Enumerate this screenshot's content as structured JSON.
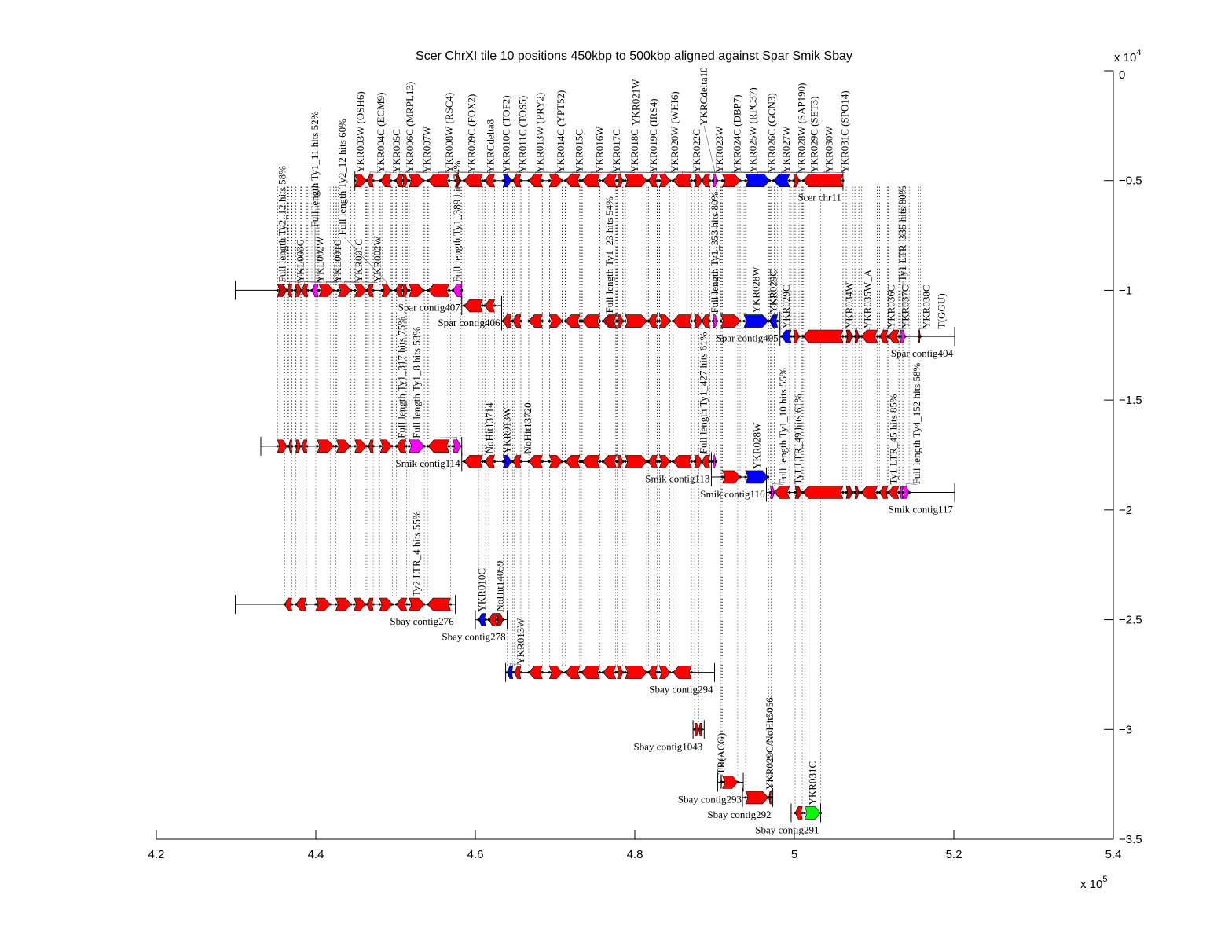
{
  "title": "Scer ChrXI tile 10 positions 450kbp to 500kbp aligned against Spar Smik Sbay",
  "x_axis": {
    "range_bp": [
      420000,
      540000
    ],
    "ticks": [
      420000,
      440000,
      460000,
      480000,
      500000,
      520000,
      540000
    ],
    "tick_labels": [
      "4.2",
      "4.4",
      "4.6",
      "4.8",
      "5",
      "5.2",
      "5.4"
    ],
    "multiplier_label": "x 10",
    "multiplier_exp": "5"
  },
  "y_axis": {
    "range": [
      -35000,
      0
    ],
    "ticks": [
      0,
      -5000,
      -10000,
      -15000,
      -20000,
      -25000,
      -30000,
      -35000
    ],
    "tick_labels": [
      "0",
      "−0.5",
      "−1",
      "−1.5",
      "−2",
      "−2.5",
      "−3",
      "−3.5"
    ],
    "multiplier_label": "x 10",
    "multiplier_exp": "4"
  },
  "colors": {
    "r": "#ff0000",
    "b": "#0000ff",
    "m": "#ff00ff",
    "d": "#c80000",
    "g": "#00ff00"
  },
  "tracks": [
    {
      "name": "Scer chr11",
      "y": -5000,
      "line": [
        444.9,
        506.1
      ],
      "genes": [
        [
          444.9,
          446.3,
          "W",
          "r",
          "YKR003W (OSH6)"
        ],
        [
          446.4,
          447.2,
          "C",
          "r",
          "YKR004C (ECM9)"
        ],
        [
          448.1,
          449.4,
          "C",
          "r",
          "YKR005C"
        ],
        [
          450.0,
          450.9,
          "C",
          "r",
          "YKR006C (MRPL13)"
        ],
        [
          450.9,
          451.5,
          "W",
          "r",
          "YKR007W"
        ],
        [
          451.7,
          453.5,
          "W",
          "r",
          "YKR008W (RSC4)"
        ],
        [
          454.1,
          456.7,
          "C",
          "r",
          "YKR009C (FOX2)"
        ],
        [
          457.5,
          458.1,
          "W",
          "d",
          "YKRCdelta8"
        ],
        [
          458.6,
          460.9,
          "C",
          "r",
          "YKR010C (TOF2)"
        ],
        [
          461.2,
          462.4,
          "C",
          "r",
          "YKR011C (TOS5)"
        ],
        [
          463.5,
          464.5,
          "W",
          "b",
          "YKR013W (PRY2)"
        ],
        [
          464.7,
          465.7,
          "C",
          "r",
          "YKR014C (YPT52)"
        ],
        [
          466.7,
          468.4,
          "C",
          "r",
          "YKR015C"
        ],
        [
          469.3,
          470.9,
          "W",
          "r",
          "YKR016W"
        ],
        [
          471.3,
          473.1,
          "C",
          "r",
          "YKR017C"
        ],
        [
          473.4,
          475.6,
          "C",
          "r",
          "YKR018C"
        ],
        [
          476.0,
          477.7,
          "C",
          "r",
          "YKR019C (IRS4)"
        ],
        [
          477.8,
          478.5,
          "W",
          "r",
          "YKR020W (WHI6)"
        ],
        [
          478.8,
          481.5,
          "W",
          "r",
          "YKR021W"
        ],
        [
          481.7,
          482.8,
          "C",
          "r",
          "YKR022C"
        ],
        [
          483.1,
          484.4,
          "W",
          "r",
          "YKR023W"
        ],
        [
          484.8,
          487.1,
          "C",
          "r",
          "YKR024C (DBP7)"
        ],
        [
          487.5,
          488.4,
          "W",
          "r",
          "YKR025W (RPC37)"
        ],
        [
          488.4,
          489.4,
          "C",
          "r",
          "YKR026C (GCN3)"
        ],
        [
          489.8,
          490.3,
          "W",
          "m",
          "YKRCdelta10"
        ],
        [
          491.0,
          493.2,
          "W",
          "r",
          "YKR027W"
        ],
        [
          493.9,
          496.9,
          "W",
          "b",
          "YKR028W (SAP190)"
        ],
        [
          497.4,
          499.4,
          "C",
          "b",
          "YKR029C (SET3)"
        ],
        [
          499.9,
          500.6,
          "W",
          "r",
          "YKR030W"
        ],
        [
          501.1,
          506.1,
          "C",
          "r",
          "YKR031C (SPO14)"
        ]
      ]
    },
    {
      "name": "Spar contig407",
      "y": -10000,
      "line": [
        429.9,
        458.3
      ],
      "genes": [
        [
          435.2,
          436.4,
          "W",
          "d",
          "Full length Ty2_12 hits 58%"
        ],
        [
          436.4,
          437.0,
          "C",
          "r",
          "YKL003C"
        ],
        [
          437.4,
          438.2,
          "W",
          "r",
          "YKL002W"
        ],
        [
          438.2,
          439.0,
          "C",
          "r",
          "YKL001C"
        ],
        [
          439.5,
          440.3,
          "C",
          "m",
          "Full length Ty1_11 hits 52%"
        ],
        [
          440.4,
          442.2,
          "W",
          "r",
          "YKR001C"
        ],
        [
          442.8,
          444.4,
          "W",
          "r",
          "YKR002W"
        ],
        [
          444.9,
          446.3,
          "W",
          "r",
          ""
        ],
        [
          446.4,
          447.2,
          "C",
          "r",
          ""
        ],
        [
          448.3,
          449.4,
          "W",
          "r",
          "Full length Ty2_12 hits 60%"
        ],
        [
          450.0,
          450.9,
          "C",
          "r",
          ""
        ],
        [
          450.9,
          451.5,
          "W",
          "r",
          ""
        ],
        [
          451.7,
          453.5,
          "W",
          "r",
          ""
        ],
        [
          454.1,
          456.7,
          "C",
          "r",
          ""
        ],
        [
          457.2,
          458.3,
          "C",
          "m",
          "Full length Ty1_389 hits 74%"
        ]
      ]
    },
    {
      "name": "Spar contig406",
      "y": -10700,
      "line": [
        458.3,
        463.3
      ],
      "genes": [
        [
          458.6,
          460.9,
          "C",
          "r",
          ""
        ],
        [
          461.2,
          462.4,
          "C",
          "r",
          ""
        ]
      ]
    },
    {
      "name": "Spar contig405",
      "y": -11400,
      "line": [
        463.3,
        498.2
      ],
      "genes": [
        [
          463.5,
          464.5,
          "C",
          "r",
          ""
        ],
        [
          464.7,
          465.7,
          "C",
          "r",
          ""
        ],
        [
          466.7,
          468.4,
          "C",
          "r",
          ""
        ],
        [
          469.3,
          470.9,
          "W",
          "r",
          ""
        ],
        [
          471.3,
          473.1,
          "C",
          "r",
          ""
        ],
        [
          473.4,
          475.6,
          "C",
          "r",
          ""
        ],
        [
          476.0,
          477.7,
          "C",
          "d",
          "Full length Ty1_23 hits 54%"
        ],
        [
          477.8,
          478.5,
          "W",
          "r",
          ""
        ],
        [
          478.8,
          481.5,
          "W",
          "r",
          ""
        ],
        [
          481.7,
          482.8,
          "C",
          "r",
          ""
        ],
        [
          483.1,
          484.4,
          "W",
          "r",
          ""
        ],
        [
          484.8,
          487.1,
          "C",
          "r",
          ""
        ],
        [
          487.5,
          488.4,
          "W",
          "r",
          ""
        ],
        [
          488.4,
          489.4,
          "C",
          "r",
          ""
        ],
        [
          489.8,
          490.3,
          "W",
          "m",
          "Full length Ty1_353 hits 80%"
        ],
        [
          490.8,
          493.2,
          "W",
          "r",
          ""
        ],
        [
          493.7,
          496.7,
          "W",
          "b",
          "YKR028W"
        ],
        [
          496.9,
          497.9,
          "C",
          "b",
          "YKR029C"
        ]
      ]
    },
    {
      "name": "Spar contig404",
      "y": -12100,
      "line": [
        498.2,
        520.1
      ],
      "genes": [
        [
          498.4,
          499.6,
          "C",
          "b",
          "YKR029C"
        ],
        [
          499.9,
          500.6,
          "W",
          "r",
          ""
        ],
        [
          501.1,
          506.1,
          "C",
          "r",
          ""
        ],
        [
          506.5,
          507.3,
          "W",
          "d",
          "YKR034W"
        ],
        [
          507.6,
          508.1,
          "W",
          "d",
          "YKR035W_A"
        ],
        [
          508.4,
          510.4,
          "C",
          "r",
          "YKR036C"
        ],
        [
          510.7,
          511.7,
          "C",
          "r",
          "YKR037C"
        ],
        [
          511.8,
          513.1,
          "C",
          "r",
          "YKR038C"
        ],
        [
          513.3,
          513.9,
          "W",
          "m",
          "Ty1 LTR_335 hits 80%"
        ],
        [
          515.6,
          515.8,
          "W",
          "d",
          "T(GGU)"
        ]
      ]
    },
    {
      "name": "Smik contig114",
      "y": -17100,
      "line": [
        433.1,
        458.3
      ],
      "genes": [
        [
          435.2,
          436.4,
          "W",
          "r",
          ""
        ],
        [
          436.6,
          437.0,
          "C",
          "r",
          ""
        ],
        [
          437.5,
          438.1,
          "W",
          "r",
          ""
        ],
        [
          438.2,
          438.9,
          "C",
          "r",
          ""
        ],
        [
          440.2,
          442.2,
          "W",
          "r",
          ""
        ],
        [
          442.6,
          444.3,
          "W",
          "r",
          ""
        ],
        [
          444.9,
          446.3,
          "W",
          "r",
          ""
        ],
        [
          446.6,
          447.2,
          "C",
          "r",
          ""
        ],
        [
          448.1,
          449.5,
          "W",
          "r",
          ""
        ],
        [
          450.1,
          451.3,
          "C",
          "r",
          ""
        ],
        [
          451.7,
          453.6,
          "W",
          "m",
          "Full length Ty1_8 hits 53%"
        ],
        [
          454.1,
          456.7,
          "C",
          "r",
          ""
        ],
        [
          457.2,
          458.2,
          "W",
          "m",
          "Full length Ty1_317 hits 75%"
        ]
      ]
    },
    {
      "name": "Smik contig113",
      "y": -17800,
      "line": [
        458.3,
        489.6
      ],
      "genes": [
        [
          458.6,
          460.9,
          "C",
          "r",
          ""
        ],
        [
          461.2,
          462.4,
          "C",
          "r",
          "NoHit13714"
        ],
        [
          463.5,
          464.5,
          "W",
          "b",
          "YKR013W"
        ],
        [
          464.7,
          465.7,
          "C",
          "r",
          "NoHit13720"
        ],
        [
          466.7,
          468.4,
          "C",
          "r",
          ""
        ],
        [
          469.3,
          470.9,
          "W",
          "r",
          ""
        ],
        [
          471.3,
          473.1,
          "C",
          "r",
          ""
        ],
        [
          473.4,
          475.6,
          "C",
          "r",
          ""
        ],
        [
          476.0,
          477.7,
          "C",
          "r",
          ""
        ],
        [
          477.8,
          478.5,
          "W",
          "r",
          ""
        ],
        [
          478.8,
          481.5,
          "W",
          "r",
          ""
        ],
        [
          481.7,
          482.8,
          "C",
          "r",
          ""
        ],
        [
          483.1,
          484.4,
          "W",
          "r",
          ""
        ],
        [
          484.8,
          487.1,
          "C",
          "r",
          ""
        ],
        [
          487.5,
          488.4,
          "W",
          "r",
          ""
        ],
        [
          488.4,
          489.4,
          "C",
          "r",
          ""
        ],
        [
          489.8,
          490.2,
          "W",
          "m",
          "Full length Ty1_427 hits 61%"
        ]
      ]
    },
    {
      "name": "Smik contig116",
      "y": -18500,
      "line": [
        489.6,
        496.5
      ],
      "genes": [
        [
          491.0,
          493.2,
          "W",
          "r",
          ""
        ],
        [
          493.9,
          496.7,
          "W",
          "b",
          "YKR028W"
        ]
      ]
    },
    {
      "name": "Smik contig117",
      "y": -19200,
      "line": [
        496.5,
        520.1
      ],
      "genes": [
        [
          497.0,
          497.5,
          "W",
          "m",
          "Full length Ty1_10 hits 55%"
        ],
        [
          497.5,
          499.4,
          "C",
          "r",
          ""
        ],
        [
          500.1,
          500.9,
          "W",
          "d",
          "Ty1 LTR_49 hits 61%"
        ],
        [
          501.1,
          506.1,
          "C",
          "r",
          ""
        ],
        [
          506.5,
          507.3,
          "W",
          "d",
          ""
        ],
        [
          507.6,
          508.1,
          "W",
          "d",
          ""
        ],
        [
          508.4,
          510.4,
          "C",
          "r",
          ""
        ],
        [
          510.7,
          511.7,
          "C",
          "r",
          ""
        ],
        [
          511.8,
          513.1,
          "C",
          "r",
          "Ty1 LTR_45 hits 85%"
        ],
        [
          513.2,
          513.6,
          "C",
          "m",
          ""
        ],
        [
          513.6,
          514.4,
          "W",
          "m",
          "Full length Ty4_152 hits 58%"
        ]
      ]
    },
    {
      "name": "Sbay contig276",
      "y": -24300,
      "line": [
        429.9,
        457.5
      ],
      "genes": [
        [
          436.1,
          437.0,
          "C",
          "r",
          ""
        ],
        [
          437.5,
          438.8,
          "C",
          "r",
          ""
        ],
        [
          440.0,
          441.8,
          "W",
          "r",
          ""
        ],
        [
          442.5,
          444.4,
          "W",
          "r",
          ""
        ],
        [
          444.8,
          446.2,
          "W",
          "r",
          ""
        ],
        [
          446.4,
          447.2,
          "C",
          "r",
          ""
        ],
        [
          448.0,
          449.6,
          "W",
          "r",
          ""
        ],
        [
          450.1,
          451.4,
          "C",
          "r",
          ""
        ],
        [
          451.7,
          453.6,
          "W",
          "r",
          "Ty2 LTR_4 hits 55%"
        ],
        [
          454.0,
          456.9,
          "C",
          "r",
          ""
        ]
      ]
    },
    {
      "name": "Sbay contig278",
      "y": -25000,
      "line": [
        460.0,
        464.0
      ],
      "genes": [
        [
          460.4,
          461.3,
          "C",
          "b",
          "YKR010C"
        ],
        [
          461.7,
          462.7,
          "C",
          "r",
          ""
        ],
        [
          462.7,
          463.5,
          "W",
          "d",
          "NoHit14059"
        ]
      ]
    },
    {
      "name": "Sbay contig294",
      "y": -27400,
      "line": [
        463.8,
        490.0
      ],
      "genes": [
        [
          464.0,
          464.7,
          "C",
          "b",
          "YKR013W"
        ],
        [
          464.9,
          465.7,
          "C",
          "r",
          ""
        ],
        [
          466.7,
          468.4,
          "C",
          "r",
          ""
        ],
        [
          469.3,
          470.9,
          "W",
          "r",
          ""
        ],
        [
          471.3,
          473.1,
          "C",
          "r",
          ""
        ],
        [
          473.3,
          475.6,
          "C",
          "r",
          ""
        ],
        [
          476.0,
          477.6,
          "C",
          "r",
          ""
        ],
        [
          477.8,
          478.5,
          "W",
          "r",
          ""
        ],
        [
          478.8,
          481.5,
          "W",
          "r",
          ""
        ],
        [
          481.7,
          482.8,
          "C",
          "r",
          ""
        ],
        [
          483.1,
          484.4,
          "W",
          "r",
          ""
        ],
        [
          484.8,
          487.1,
          "C",
          "r",
          ""
        ]
      ]
    },
    {
      "name": "Sbay contig1043",
      "y": -30000,
      "line": [
        487.3,
        488.7
      ],
      "genes": [
        [
          487.5,
          488.0,
          "W",
          "r",
          ""
        ],
        [
          488.0,
          488.4,
          "C",
          "r",
          ""
        ]
      ]
    },
    {
      "name": "Sbay contig293",
      "y": -32400,
      "line": [
        490.4,
        493.6
      ],
      "genes": [
        [
          490.8,
          490.9,
          "W",
          "d",
          "TR(ACG)"
        ],
        [
          491.0,
          492.9,
          "W",
          "r",
          ""
        ]
      ]
    },
    {
      "name": "Sbay contig292",
      "y": -33100,
      "line": [
        493.5,
        497.3
      ],
      "genes": [
        [
          493.9,
          496.7,
          "W",
          "r",
          ""
        ],
        [
          496.8,
          497.1,
          "C",
          "d",
          "YKR029C/NoHit5056"
        ]
      ]
    },
    {
      "name": "Sbay contig291",
      "y": -33800,
      "line": [
        499.6,
        503.3
      ],
      "genes": [
        [
          500.1,
          501.0,
          "C",
          "r",
          ""
        ],
        [
          501.3,
          503.3,
          "W",
          "g",
          "YKR031C"
        ]
      ]
    }
  ]
}
